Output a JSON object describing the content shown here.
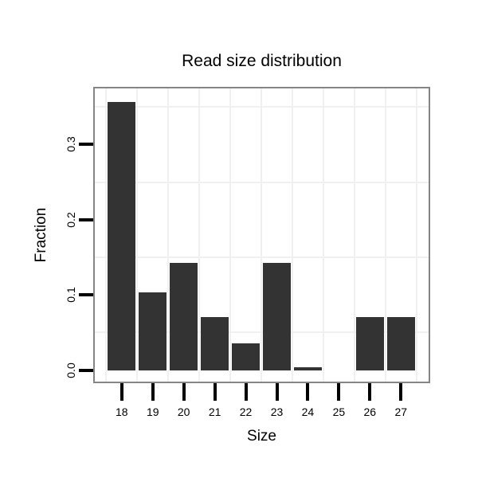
{
  "chart_data": {
    "type": "bar",
    "title": "Read size distribution",
    "xlabel": "Size",
    "ylabel": "Fraction",
    "categories": [
      "18",
      "19",
      "20",
      "21",
      "22",
      "23",
      "24",
      "25",
      "26",
      "27"
    ],
    "values": [
      0.357,
      0.104,
      0.143,
      0.071,
      0.036,
      0.143,
      0.004,
      0,
      0.071,
      0.071
    ],
    "yticks": [
      0,
      0.1,
      0.2,
      0.3
    ],
    "ytick_labels": [
      "0.0",
      "0.1",
      "0.2",
      "0.3"
    ],
    "ylim": [
      -0.015,
      0.375
    ],
    "grid": true,
    "grid_minor_y": [
      0.05,
      0.15,
      0.25,
      0.35
    ],
    "legend": "none",
    "colors": {
      "bar": "#333333",
      "panel_border": "#858585",
      "gridline": "#f0f0f0",
      "text": "#000000",
      "tick": "#000000",
      "background": "#ffffff"
    }
  }
}
